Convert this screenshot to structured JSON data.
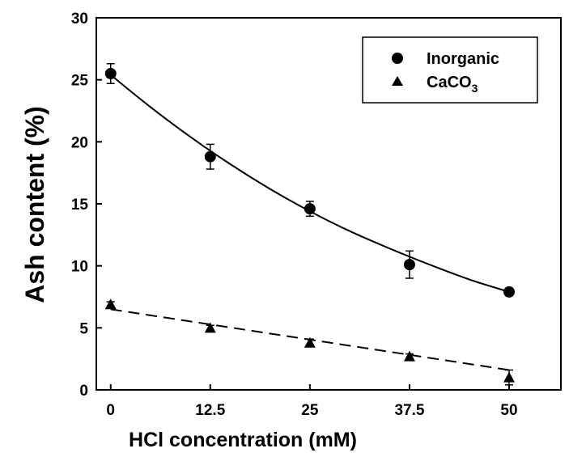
{
  "chart_data": {
    "type": "scatter",
    "xlabel": "HCl concentration (mM)",
    "ylabel": "Ash content (%)",
    "xlim": [
      -1.8,
      56.5
    ],
    "ylim": [
      0,
      30
    ],
    "x_ticks": [
      0,
      12.5,
      25,
      37.5,
      50
    ],
    "x_tick_labels": [
      "0",
      "12.5",
      "25",
      "37.5",
      "50"
    ],
    "y_ticks": [
      0,
      5,
      10,
      15,
      20,
      25,
      30
    ],
    "y_tick_labels": [
      "0",
      "5",
      "10",
      "15",
      "20",
      "25",
      "30"
    ],
    "legend_position": "top-right",
    "series": [
      {
        "name": "Inorganic",
        "legend_label": "Inorganic",
        "marker": "circle",
        "fit_line": "solid",
        "x": [
          0,
          12.5,
          25,
          37.5,
          50
        ],
        "values": [
          25.5,
          18.8,
          14.6,
          10.1,
          7.9
        ],
        "errors": [
          0.8,
          1.0,
          0.6,
          1.1,
          0.3
        ],
        "fit_x": [
          0,
          5,
          10,
          15,
          20,
          25,
          30,
          35,
          40,
          45,
          50
        ],
        "fit_y": [
          25.4,
          22.8,
          20.4,
          18.2,
          16.2,
          14.4,
          12.8,
          11.4,
          10.1,
          8.9,
          7.9
        ]
      },
      {
        "name": "CaCO3",
        "legend_label": "CaCO",
        "legend_subscript": "3",
        "marker": "triangle",
        "fit_line": "dashed",
        "x": [
          0,
          12.5,
          25,
          37.5,
          50
        ],
        "values": [
          6.9,
          5.0,
          3.8,
          2.7,
          1.0
        ],
        "errors": [
          0.2,
          0.2,
          0.3,
          0.2,
          0.6
        ],
        "fit_x": [
          0,
          50
        ],
        "fit_y": [
          6.5,
          1.6
        ]
      }
    ]
  }
}
